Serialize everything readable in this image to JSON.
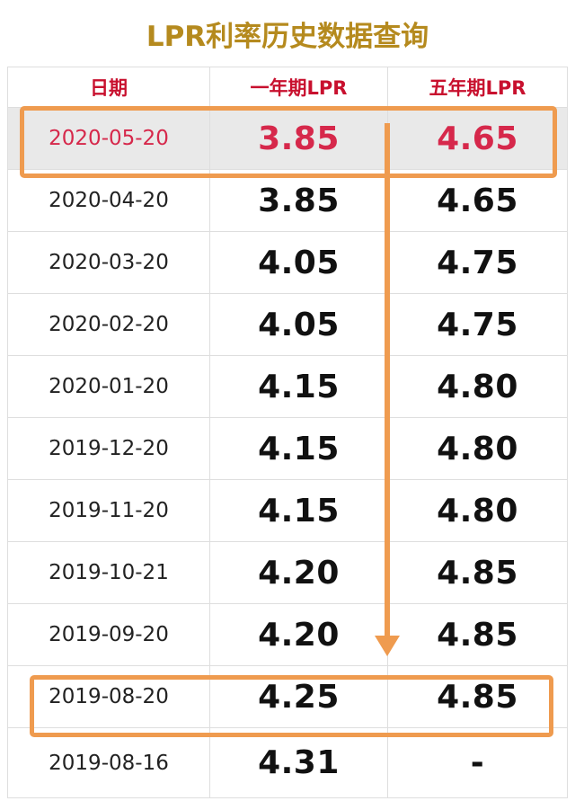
{
  "title": "LPR利率历史数据查询",
  "headers": [
    "日期",
    "一年期LPR",
    "五年期LPR"
  ],
  "rows": [
    {
      "date": "2020-05-20",
      "one_year": "3.85",
      "five_year": "4.65"
    },
    {
      "date": "2020-04-20",
      "one_year": "3.85",
      "five_year": "4.65"
    },
    {
      "date": "2020-03-20",
      "one_year": "4.05",
      "five_year": "4.75"
    },
    {
      "date": "2020-02-20",
      "one_year": "4.05",
      "five_year": "4.75"
    },
    {
      "date": "2020-01-20",
      "one_year": "4.15",
      "five_year": "4.80"
    },
    {
      "date": "2019-12-20",
      "one_year": "4.15",
      "five_year": "4.80"
    },
    {
      "date": "2019-11-20",
      "one_year": "4.15",
      "five_year": "4.80"
    },
    {
      "date": "2019-10-21",
      "one_year": "4.20",
      "five_year": "4.85"
    },
    {
      "date": "2019-09-20",
      "one_year": "4.20",
      "five_year": "4.85"
    },
    {
      "date": "2019-08-20",
      "one_year": "4.25",
      "five_year": "4.85"
    },
    {
      "date": "2019-08-16",
      "one_year": "4.31",
      "five_year": "-"
    }
  ],
  "colors": {
    "title": "#b58a1e",
    "header_text": "#c8102e",
    "highlight_text": "#d6284b",
    "highlight_bg": "#e9e9e9",
    "annotation": "#ef9b4f"
  }
}
